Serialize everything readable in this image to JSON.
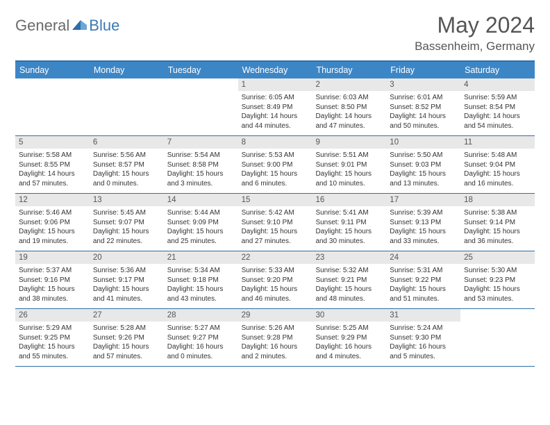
{
  "logo": {
    "general": "General",
    "blue": "Blue"
  },
  "title": "May 2024",
  "location": "Bassenheim, Germany",
  "daynames": [
    "Sunday",
    "Monday",
    "Tuesday",
    "Wednesday",
    "Thursday",
    "Friday",
    "Saturday"
  ],
  "labels": {
    "sunrise": "Sunrise: ",
    "sunset": "Sunset: ",
    "daylight": "Daylight: "
  },
  "colors": {
    "header_bg": "#3d86c6",
    "border": "#2f6ea8",
    "daynum_bg": "#e8e8e8",
    "logo_gray": "#6a6a6a",
    "logo_blue": "#3d79b3"
  },
  "weeks": [
    [
      null,
      null,
      null,
      {
        "n": "1",
        "sr": "6:05 AM",
        "ss": "8:49 PM",
        "dl": "14 hours and 44 minutes."
      },
      {
        "n": "2",
        "sr": "6:03 AM",
        "ss": "8:50 PM",
        "dl": "14 hours and 47 minutes."
      },
      {
        "n": "3",
        "sr": "6:01 AM",
        "ss": "8:52 PM",
        "dl": "14 hours and 50 minutes."
      },
      {
        "n": "4",
        "sr": "5:59 AM",
        "ss": "8:54 PM",
        "dl": "14 hours and 54 minutes."
      }
    ],
    [
      {
        "n": "5",
        "sr": "5:58 AM",
        "ss": "8:55 PM",
        "dl": "14 hours and 57 minutes."
      },
      {
        "n": "6",
        "sr": "5:56 AM",
        "ss": "8:57 PM",
        "dl": "15 hours and 0 minutes."
      },
      {
        "n": "7",
        "sr": "5:54 AM",
        "ss": "8:58 PM",
        "dl": "15 hours and 3 minutes."
      },
      {
        "n": "8",
        "sr": "5:53 AM",
        "ss": "9:00 PM",
        "dl": "15 hours and 6 minutes."
      },
      {
        "n": "9",
        "sr": "5:51 AM",
        "ss": "9:01 PM",
        "dl": "15 hours and 10 minutes."
      },
      {
        "n": "10",
        "sr": "5:50 AM",
        "ss": "9:03 PM",
        "dl": "15 hours and 13 minutes."
      },
      {
        "n": "11",
        "sr": "5:48 AM",
        "ss": "9:04 PM",
        "dl": "15 hours and 16 minutes."
      }
    ],
    [
      {
        "n": "12",
        "sr": "5:46 AM",
        "ss": "9:06 PM",
        "dl": "15 hours and 19 minutes."
      },
      {
        "n": "13",
        "sr": "5:45 AM",
        "ss": "9:07 PM",
        "dl": "15 hours and 22 minutes."
      },
      {
        "n": "14",
        "sr": "5:44 AM",
        "ss": "9:09 PM",
        "dl": "15 hours and 25 minutes."
      },
      {
        "n": "15",
        "sr": "5:42 AM",
        "ss": "9:10 PM",
        "dl": "15 hours and 27 minutes."
      },
      {
        "n": "16",
        "sr": "5:41 AM",
        "ss": "9:11 PM",
        "dl": "15 hours and 30 minutes."
      },
      {
        "n": "17",
        "sr": "5:39 AM",
        "ss": "9:13 PM",
        "dl": "15 hours and 33 minutes."
      },
      {
        "n": "18",
        "sr": "5:38 AM",
        "ss": "9:14 PM",
        "dl": "15 hours and 36 minutes."
      }
    ],
    [
      {
        "n": "19",
        "sr": "5:37 AM",
        "ss": "9:16 PM",
        "dl": "15 hours and 38 minutes."
      },
      {
        "n": "20",
        "sr": "5:36 AM",
        "ss": "9:17 PM",
        "dl": "15 hours and 41 minutes."
      },
      {
        "n": "21",
        "sr": "5:34 AM",
        "ss": "9:18 PM",
        "dl": "15 hours and 43 minutes."
      },
      {
        "n": "22",
        "sr": "5:33 AM",
        "ss": "9:20 PM",
        "dl": "15 hours and 46 minutes."
      },
      {
        "n": "23",
        "sr": "5:32 AM",
        "ss": "9:21 PM",
        "dl": "15 hours and 48 minutes."
      },
      {
        "n": "24",
        "sr": "5:31 AM",
        "ss": "9:22 PM",
        "dl": "15 hours and 51 minutes."
      },
      {
        "n": "25",
        "sr": "5:30 AM",
        "ss": "9:23 PM",
        "dl": "15 hours and 53 minutes."
      }
    ],
    [
      {
        "n": "26",
        "sr": "5:29 AM",
        "ss": "9:25 PM",
        "dl": "15 hours and 55 minutes."
      },
      {
        "n": "27",
        "sr": "5:28 AM",
        "ss": "9:26 PM",
        "dl": "15 hours and 57 minutes."
      },
      {
        "n": "28",
        "sr": "5:27 AM",
        "ss": "9:27 PM",
        "dl": "16 hours and 0 minutes."
      },
      {
        "n": "29",
        "sr": "5:26 AM",
        "ss": "9:28 PM",
        "dl": "16 hours and 2 minutes."
      },
      {
        "n": "30",
        "sr": "5:25 AM",
        "ss": "9:29 PM",
        "dl": "16 hours and 4 minutes."
      },
      {
        "n": "31",
        "sr": "5:24 AM",
        "ss": "9:30 PM",
        "dl": "16 hours and 5 minutes."
      },
      null
    ]
  ]
}
